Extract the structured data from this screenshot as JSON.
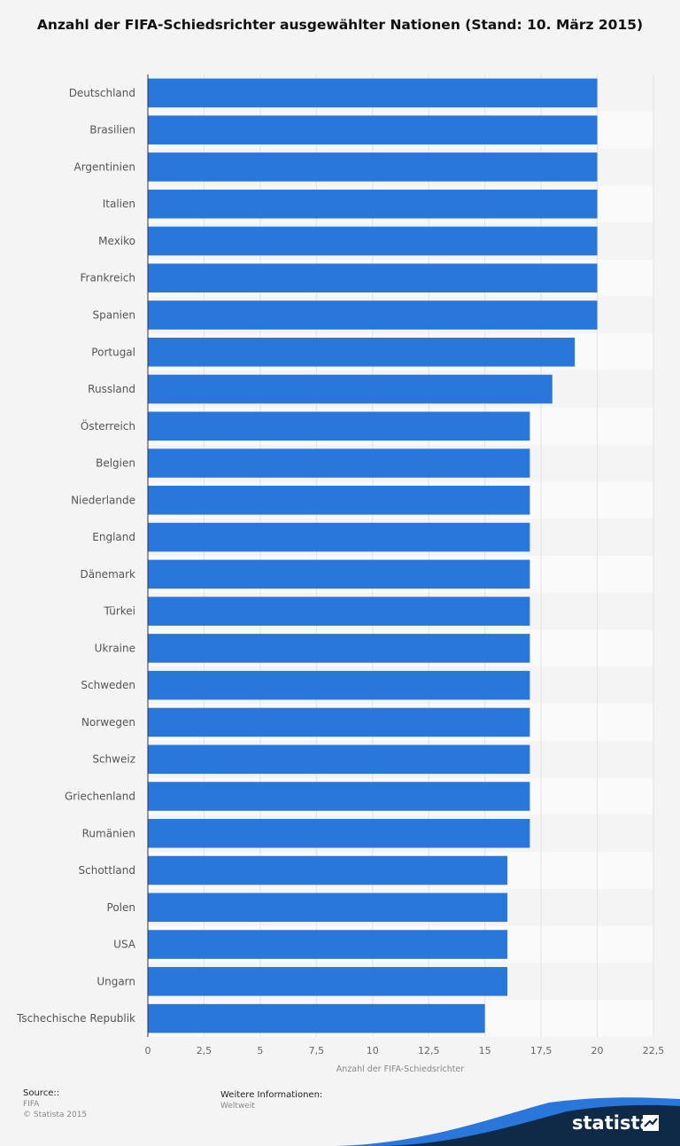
{
  "chart_data": {
    "type": "bar",
    "orientation": "horizontal",
    "title": "Anzahl der FIFA-Schiedsrichter ausgewählter Nationen (Stand: 10. März 2015)",
    "categories": [
      "Deutschland",
      "Brasilien",
      "Argentinien",
      "Italien",
      "Mexiko",
      "Frankreich",
      "Spanien",
      "Portugal",
      "Russland",
      "Österreich",
      "Belgien",
      "Niederlande",
      "England",
      "Dänemark",
      "Türkei",
      "Ukraine",
      "Schweden",
      "Norwegen",
      "Schweiz",
      "Griechenland",
      "Rumänien",
      "Schottland",
      "Polen",
      "USA",
      "Ungarn",
      "Tschechische Republik"
    ],
    "values": [
      20,
      20,
      20,
      20,
      20,
      20,
      20,
      19,
      18,
      17,
      17,
      17,
      17,
      17,
      17,
      17,
      17,
      17,
      17,
      17,
      17,
      16,
      16,
      16,
      16,
      15
    ],
    "xlabel": "Anzahl der FIFA-Schiedsrichter",
    "xlim": [
      0,
      22.5
    ],
    "xticks": [
      "0",
      "2,5",
      "5",
      "7,5",
      "10",
      "12,5",
      "15",
      "17,5",
      "20",
      "22,5"
    ],
    "bar_color": "#2a77dc",
    "grid": true,
    "legend": "none"
  },
  "footer": {
    "source_label": "Source::",
    "source_value": "FIFA",
    "copyright": "© Statista 2015",
    "info_label": "Weitere Informationen:",
    "info_value": "Weltweit"
  },
  "brand": {
    "name": "statista",
    "accent": "#2a77dc",
    "dark": "#0e2a47"
  }
}
